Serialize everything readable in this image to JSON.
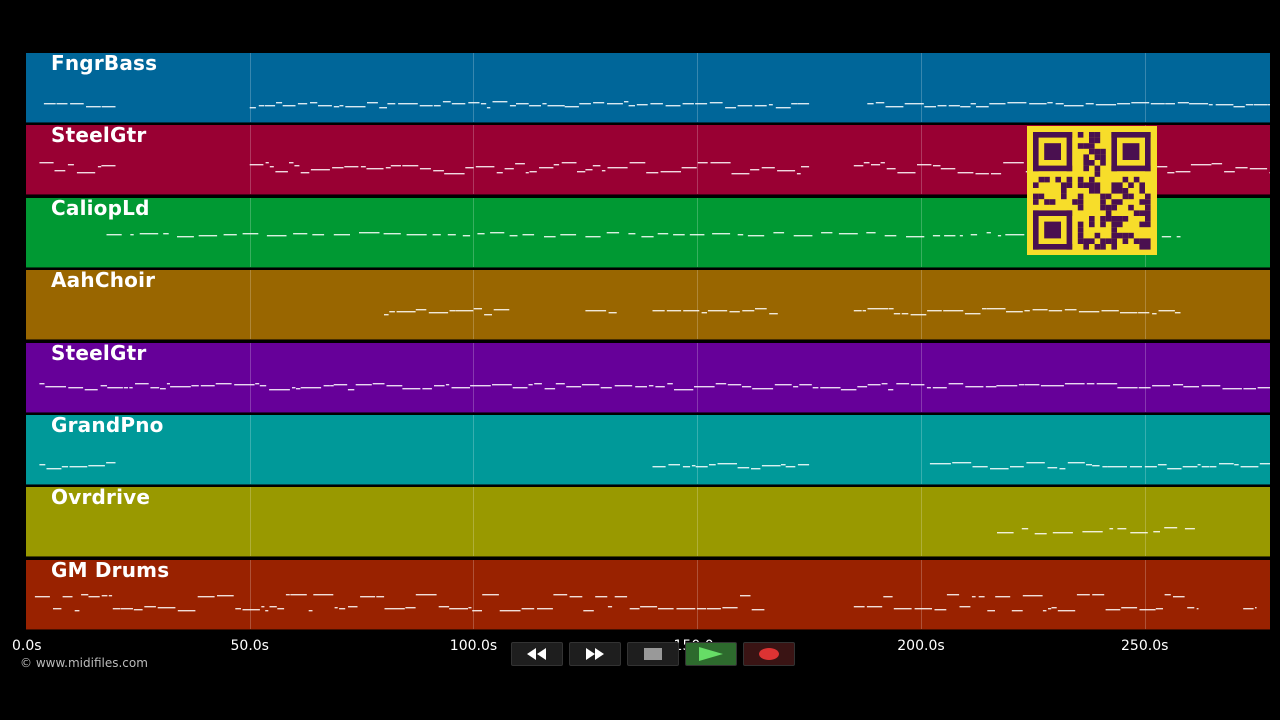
{
  "tracks": [
    {
      "name": "FngrBass",
      "color": "#006699"
    },
    {
      "name": "SteelGtr",
      "color": "#990033"
    },
    {
      "name": "CaliopLd",
      "color": "#009933"
    },
    {
      "name": "AahChoir",
      "color": "#996600"
    },
    {
      "name": "SteelGtr",
      "color": "#660099"
    },
    {
      "name": "GrandPno",
      "color": "#009999"
    },
    {
      "name": "Ovrdrive",
      "color": "#999900"
    },
    {
      "name": "GM Drums",
      "color": "#992200"
    }
  ],
  "timeline": {
    "ticks": [
      {
        "label": "0.0s",
        "value": 0
      },
      {
        "label": "50.0s",
        "value": 50
      },
      {
        "label": "100.0s",
        "value": 100
      },
      {
        "label": "150.0s",
        "value": 150
      },
      {
        "label": "200.0s",
        "value": 200
      },
      {
        "label": "250.0s",
        "value": 250
      }
    ],
    "range_seconds": [
      0,
      278
    ]
  },
  "copyright": "© www.midifiles.com",
  "transport": {
    "rewind": "rewind-icon",
    "fast_forward": "fast-forward-icon",
    "stop": "stop-icon",
    "play": "play-icon",
    "record": "record-icon",
    "play_color": "#66dd66",
    "record_color": "#dd3333"
  },
  "qr": {
    "color": "#f7dd2a",
    "module_color": "#4a1050"
  }
}
